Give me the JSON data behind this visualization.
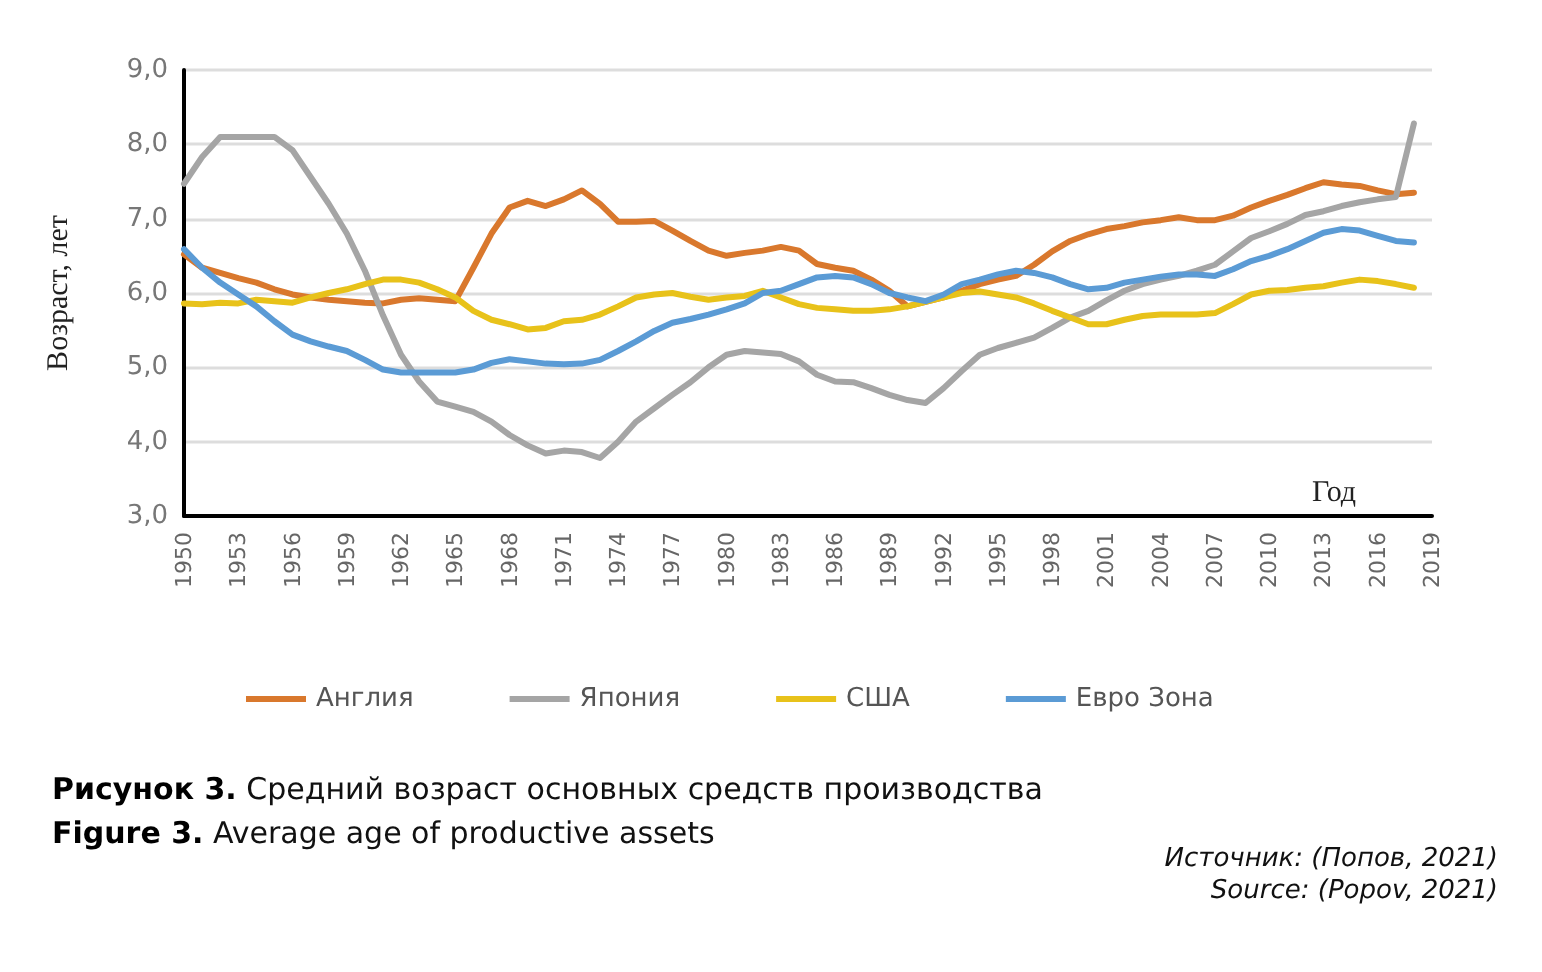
{
  "chart_data": {
    "type": "line",
    "ylabel": "Возраст, лет",
    "xlabel": "Год",
    "categories": [
      "1950",
      null,
      null,
      "1953",
      null,
      null,
      "1956",
      null,
      null,
      "1959",
      null,
      null,
      "1962",
      null,
      null,
      "1965",
      null,
      null,
      "1968",
      null,
      null,
      "1971",
      null,
      null,
      "1974",
      null,
      null,
      "1977",
      null,
      null,
      "1980",
      null,
      null,
      "1983",
      null,
      null,
      "1986",
      null,
      null,
      "1989",
      null,
      null,
      "1992",
      null,
      null,
      "1995",
      null,
      null,
      "1998",
      null,
      null,
      "2001",
      null,
      null,
      "2004",
      null,
      null,
      "2007",
      null,
      null,
      "2010",
      null,
      null,
      "2013",
      null,
      null,
      "2016",
      null,
      null,
      "2019"
    ],
    "series": [
      {
        "name": "Англия",
        "color": "#d9782d",
        "values": [
          6.52,
          6.34,
          6.27,
          6.2,
          6.14,
          6.05,
          5.98,
          5.94,
          5.91,
          5.89,
          5.87,
          5.86,
          5.91,
          5.93,
          5.91,
          5.89,
          6.34,
          6.8,
          7.15,
          7.24,
          7.17,
          7.26,
          7.38,
          7.2,
          6.96,
          6.96,
          6.97,
          6.84,
          6.7,
          6.57,
          6.5,
          6.54,
          6.57,
          6.62,
          6.57,
          6.39,
          6.34,
          6.3,
          6.18,
          6.03,
          5.82,
          5.88,
          5.94,
          6.03,
          6.12,
          6.18,
          6.23,
          6.38,
          6.56,
          6.7,
          6.79,
          6.86,
          6.9,
          6.95,
          6.98,
          7.02,
          6.98,
          6.98,
          7.04,
          7.15,
          7.24,
          7.32,
          7.41,
          7.49,
          7.46,
          7.44,
          7.38,
          7.33,
          7.35,
          null
        ]
      },
      {
        "name": "Япония",
        "color": "#a5a5a5",
        "values": [
          7.47,
          7.83,
          8.1,
          8.1,
          8.1,
          8.1,
          7.92,
          7.56,
          7.2,
          6.8,
          6.3,
          5.7,
          5.17,
          4.81,
          4.54,
          4.47,
          4.4,
          4.27,
          4.09,
          3.95,
          3.84,
          3.88,
          3.86,
          3.78,
          4.0,
          4.27,
          4.45,
          4.63,
          4.8,
          5.0,
          5.17,
          5.22,
          5.2,
          5.18,
          5.08,
          4.9,
          4.81,
          4.8,
          4.72,
          4.63,
          4.56,
          4.52,
          4.72,
          4.95,
          5.17,
          5.26,
          5.33,
          5.4,
          5.53,
          5.67,
          5.76,
          5.9,
          6.03,
          6.12,
          6.18,
          6.23,
          6.3,
          6.38,
          6.56,
          6.74,
          6.83,
          6.93,
          7.05,
          7.1,
          7.17,
          7.22,
          7.26,
          7.29,
          8.28,
          null
        ]
      },
      {
        "name": "США",
        "color": "#e8c21a",
        "values": [
          5.86,
          5.85,
          5.87,
          5.86,
          5.91,
          5.89,
          5.87,
          5.94,
          6.0,
          6.05,
          6.12,
          6.18,
          6.18,
          6.14,
          6.05,
          5.94,
          5.76,
          5.64,
          5.58,
          5.51,
          5.53,
          5.62,
          5.64,
          5.71,
          5.82,
          5.94,
          5.98,
          6.0,
          5.95,
          5.91,
          5.94,
          5.96,
          6.03,
          5.94,
          5.85,
          5.8,
          5.78,
          5.76,
          5.76,
          5.78,
          5.82,
          5.88,
          5.94,
          6.0,
          6.02,
          5.98,
          5.94,
          5.86,
          5.76,
          5.67,
          5.58,
          5.58,
          5.64,
          5.69,
          5.71,
          5.71,
          5.71,
          5.73,
          5.85,
          5.98,
          6.03,
          6.04,
          6.07,
          6.09,
          6.14,
          6.18,
          6.16,
          6.12,
          6.07,
          null
        ]
      },
      {
        "name": "Евро Зона",
        "color": "#5b9bd5",
        "values": [
          6.59,
          6.34,
          6.14,
          5.98,
          5.82,
          5.62,
          5.44,
          5.35,
          5.28,
          5.22,
          5.1,
          4.97,
          4.93,
          4.93,
          4.93,
          4.93,
          4.97,
          5.06,
          5.11,
          5.08,
          5.05,
          5.04,
          5.05,
          5.1,
          5.22,
          5.35,
          5.49,
          5.6,
          5.65,
          5.71,
          5.78,
          5.86,
          6.0,
          6.03,
          6.12,
          6.21,
          6.23,
          6.21,
          6.12,
          6.0,
          5.94,
          5.89,
          5.98,
          6.12,
          6.18,
          6.25,
          6.3,
          6.27,
          6.21,
          6.12,
          6.05,
          6.07,
          6.14,
          6.18,
          6.22,
          6.25,
          6.25,
          6.23,
          6.32,
          6.43,
          6.5,
          6.59,
          6.7,
          6.81,
          6.86,
          6.84,
          6.77,
          6.7,
          6.68,
          null
        ]
      }
    ],
    "ylim": [
      3,
      9
    ],
    "yticks": [
      {
        "value": 3,
        "label": "3,0"
      },
      {
        "value": 4,
        "label": "4,0"
      },
      {
        "value": 5,
        "label": "5,0"
      },
      {
        "value": 6,
        "label": "6,0"
      },
      {
        "value": 7,
        "label": "7,0"
      },
      {
        "value": 8,
        "label": "8,0"
      },
      {
        "value": 9,
        "label": "9,0"
      }
    ],
    "grid": "y",
    "legend": "bottom",
    "marker": "none",
    "line_style": "solid",
    "annotations": [
      "Рисунок 3. Средний возраст основных средств производства",
      "Figure 3. Average age of productive assets",
      "Источник: (Попов, 2021)",
      "Source: (Popov, 2021)"
    ]
  }
}
